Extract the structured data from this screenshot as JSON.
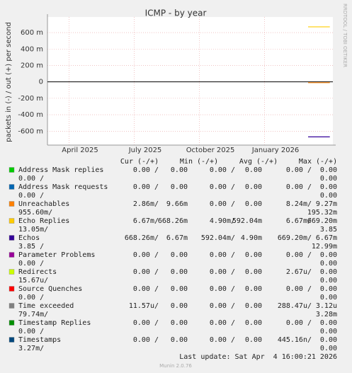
{
  "chart_data": {
    "type": "line",
    "title": "ICMP - by year",
    "y_label": "packets in (-) / out (+) per second",
    "watermark": "RRDTOOL / TOBI OETIKER",
    "grid": true,
    "xlim": [
      "2025-03",
      "2026-04"
    ],
    "xticks": [
      {
        "value": "2025-04",
        "label": "April 2025"
      },
      {
        "value": "2025-07",
        "label": "July 2025"
      },
      {
        "value": "2025-10",
        "label": "October 2025"
      },
      {
        "value": "2026-01",
        "label": "January 2026"
      }
    ],
    "ylim": [
      -0.77,
      0.79
    ],
    "yticks": [
      {
        "value": 0.6,
        "label": "600 m"
      },
      {
        "value": 0.4,
        "label": "400 m"
      },
      {
        "value": 0.2,
        "label": "200 m"
      },
      0,
      {
        "value": -0.2,
        "label": "-200 m"
      },
      {
        "value": -0.4,
        "label": "-400 m"
      },
      {
        "value": -0.6,
        "label": "-600 m"
      }
    ],
    "x": [
      "2026-03",
      "2026-04"
    ],
    "legend_columns": [
      "Cur (-/+)",
      "Min (-/+)",
      "Avg (-/+)",
      "Max (-/+)"
    ],
    "series": [
      {
        "name": "Address Mask replies",
        "color": "#00cc00",
        "stats": [
          "0.00 /",
          "0.00",
          "0.00 /",
          "0.00",
          "0.00 /",
          "0.00",
          "0.00 /",
          "0.00"
        ]
      },
      {
        "name": "Address Mask requests",
        "color": "#0066b3",
        "stats": [
          "0.00 /",
          "0.00",
          "0.00 /",
          "0.00",
          "0.00 /",
          "0.00",
          "0.00 /",
          "0.00"
        ]
      },
      {
        "name": "Unreachables",
        "color": "#ff8000",
        "values": [
          -0.01,
          -0.01
        ],
        "stats": [
          "2.86m/",
          "9.66m",
          "0.00 /",
          "0.00",
          "8.24m/",
          "9.27m",
          "955.60m/",
          "195.32m"
        ]
      },
      {
        "name": "Echo Replies",
        "color": "#ffcc00",
        "values": [
          0.67,
          0.67
        ],
        "stats": [
          "6.67m/",
          "668.26m",
          "4.90m/",
          "592.04m",
          "6.67m/",
          "669.20m",
          "13.05m/",
          "3.85"
        ]
      },
      {
        "name": "Echos",
        "color": "#330099",
        "values": [
          -0.67,
          -0.67
        ],
        "stats": [
          "668.26m/",
          "6.67m",
          "592.04m/",
          "4.90m",
          "669.20m/",
          "6.67m",
          "3.85 /",
          "12.99m"
        ]
      },
      {
        "name": "Parameter Problems",
        "color": "#990099",
        "stats": [
          "0.00 /",
          "0.00",
          "0.00 /",
          "0.00",
          "0.00 /",
          "0.00",
          "0.00 /",
          "0.00"
        ]
      },
      {
        "name": "Redirects",
        "color": "#ccff00",
        "stats": [
          "0.00 /",
          "0.00",
          "0.00 /",
          "0.00",
          "2.67u/",
          "0.00",
          "15.67u/",
          "0.00"
        ]
      },
      {
        "name": "Source Quenches",
        "color": "#ff0000",
        "stats": [
          "0.00 /",
          "0.00",
          "0.00 /",
          "0.00",
          "0.00 /",
          "0.00",
          "0.00 /",
          "0.00"
        ]
      },
      {
        "name": "Time exceeded",
        "color": "#808080",
        "stats": [
          "11.57u/",
          "0.00",
          "0.00 /",
          "0.00",
          "288.47u/",
          "3.12u",
          "79.74m/",
          "3.28m"
        ]
      },
      {
        "name": "Timestamp Replies",
        "color": "#008f00",
        "stats": [
          "0.00 /",
          "0.00",
          "0.00 /",
          "0.00",
          "0.00 /",
          "0.00",
          "0.00 /",
          "0.00"
        ]
      },
      {
        "name": "Timestamps",
        "color": "#00487d",
        "stats": [
          "0.00 /",
          "0.00",
          "0.00 /",
          "0.00",
          "445.16n/",
          "0.00",
          "3.27m/",
          "0.00"
        ]
      }
    ],
    "last_update": "Last update: Sat Apr  4 16:00:21 2026",
    "footer": "Munin 2.0.76"
  }
}
